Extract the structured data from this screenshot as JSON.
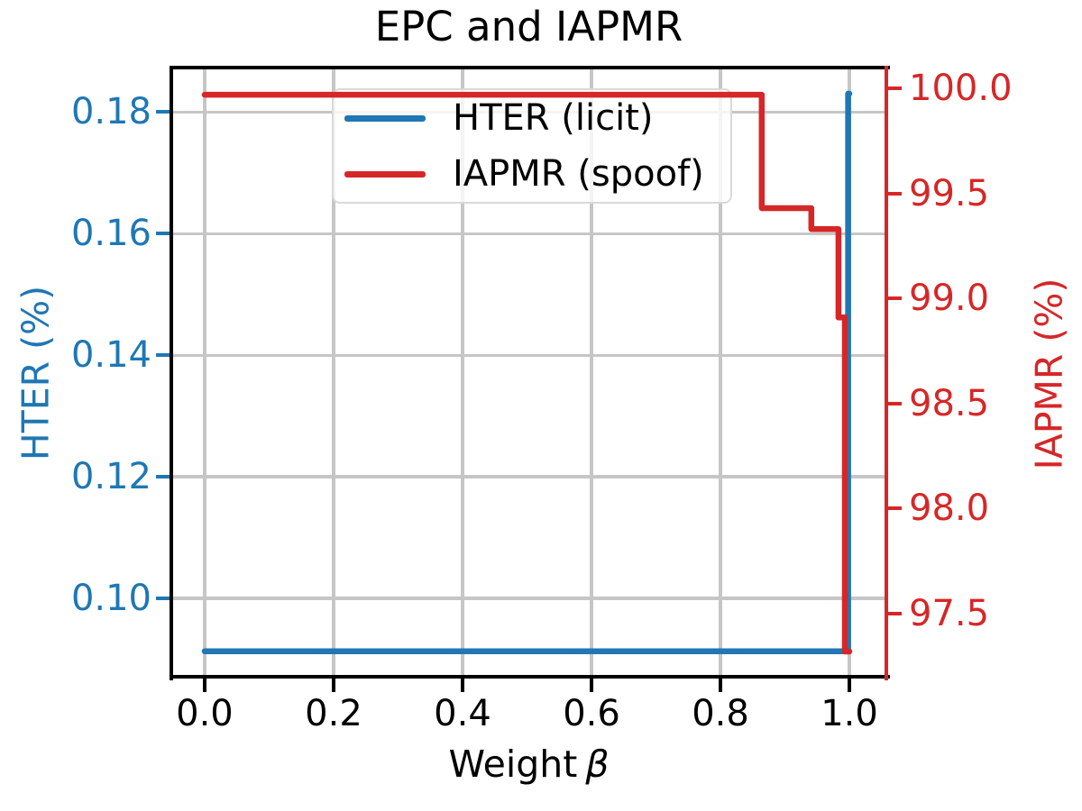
{
  "figure": {
    "background": "#ffffff",
    "grid_color": "#c6c6c6",
    "spine_color": "#000000"
  },
  "chart_data": {
    "type": "line",
    "title": "EPC and IAPMR",
    "grid": true,
    "legend_position": "upper center-left",
    "x_axis": {
      "label_prefix": "Weight",
      "label_symbol": "β",
      "lim": [
        -0.0517,
        1.0573
      ],
      "tick_values": [
        0.0,
        0.2,
        0.4,
        0.6,
        0.8,
        1.0
      ],
      "tick_labels": [
        "0.0",
        "0.2",
        "0.4",
        "0.6",
        "0.8",
        "1.0"
      ],
      "color": "#000000"
    },
    "y_axis_left": {
      "label": "HTER (%)",
      "lim": [
        0.0871,
        0.1873
      ],
      "tick_values": [
        0.18,
        0.16,
        0.14,
        0.12,
        0.1
      ],
      "tick_labels": [
        "0.18",
        "0.16",
        "0.14",
        "0.12",
        "0.10"
      ],
      "color": "#1f77b4"
    },
    "y_axis_right": {
      "label": "IAPMR (%)",
      "lim": [
        97.2,
        100.099
      ],
      "tick_values": [
        100.0,
        99.5,
        99.0,
        98.5,
        98.0,
        97.5
      ],
      "tick_labels": [
        "100.0",
        "99.5",
        "99.0",
        "98.5",
        "98.0",
        "97.5"
      ],
      "color": "#d62728"
    },
    "legend": {
      "entries": [
        {
          "label": "HTER (licit)",
          "color": "#1f77b4"
        },
        {
          "label": "IAPMR (spoof)",
          "color": "#d62728"
        }
      ]
    },
    "series": [
      {
        "name": "HTER (licit)",
        "axis": "left",
        "color": "#1f77b4",
        "points": [
          [
            0.0,
            0.0913
          ],
          [
            0.998,
            0.0913
          ],
          [
            0.998,
            0.183
          ],
          [
            1.0,
            0.183
          ]
        ]
      },
      {
        "name": "IAPMR (spoof)",
        "axis": "right",
        "color": "#d62728",
        "points": [
          [
            0.0,
            99.97
          ],
          [
            0.864,
            99.97
          ],
          [
            0.864,
            99.43
          ],
          [
            0.941,
            99.43
          ],
          [
            0.941,
            99.33
          ],
          [
            0.983,
            99.33
          ],
          [
            0.983,
            98.91
          ],
          [
            0.993,
            98.91
          ],
          [
            0.993,
            97.32
          ],
          [
            1.0,
            97.32
          ]
        ]
      }
    ]
  }
}
